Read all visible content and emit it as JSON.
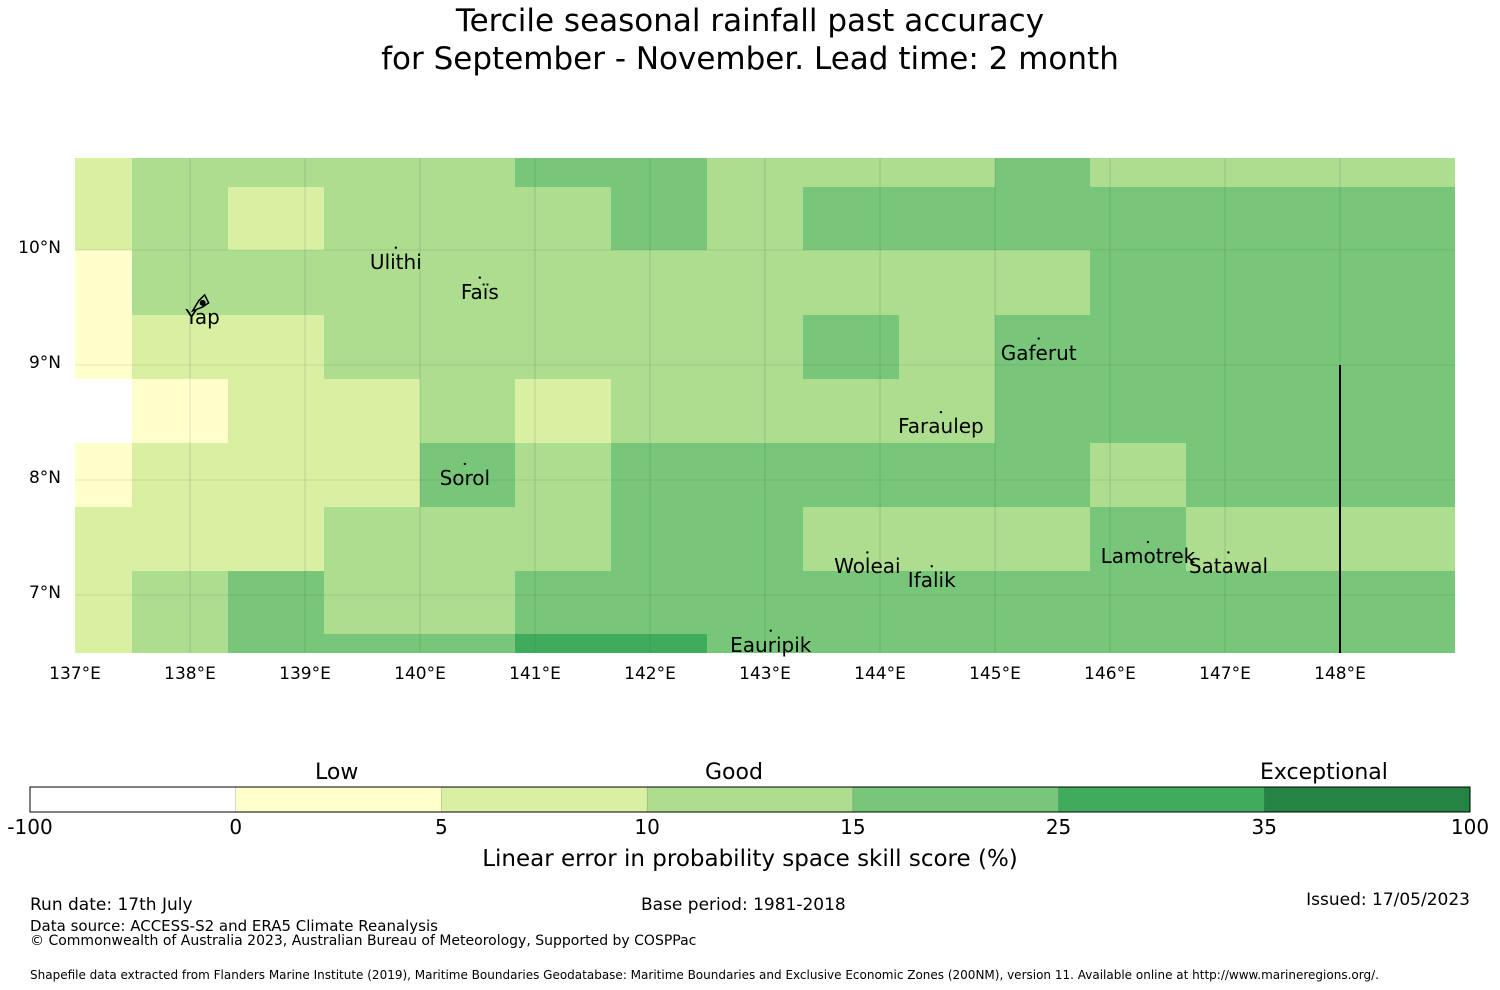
{
  "title": {
    "line1": "Tercile seasonal rainfall past accuracy",
    "line2": "for September - November. Lead time: 2 month"
  },
  "map": {
    "lon_range": [
      137.0,
      149.0
    ],
    "lat_range": [
      6.5,
      10.8
    ],
    "x_ticks": [
      "137°E",
      "138°E",
      "139°E",
      "140°E",
      "141°E",
      "142°E",
      "143°E",
      "144°E",
      "145°E",
      "146°E",
      "147°E",
      "148°E"
    ],
    "y_ticks": [
      "10°N",
      "9°N",
      "8°N",
      "7°N"
    ],
    "colors": {
      "c0": "#ffffff",
      "c1": "#ffffcc",
      "c2": "#d9f0a3",
      "c3": "#addd8e",
      "c4": "#78c679",
      "c5": "#41ab5d",
      "c6": "#238443",
      "grid": "#555555",
      "coast": "#000000"
    },
    "cells": [
      "2333344333433",
      "2323334344444",
      "1333333333344",
      "1223333343444",
      "0122323333444",
      "1222434444434",
      "2223334433343",
      "2343344444444",
      "2344455444444"
    ],
    "islands": [
      {
        "name": "Yap",
        "lon": 138.11,
        "lat": 9.54
      },
      {
        "name": "Ulithi",
        "lon": 139.79,
        "lat": 10.02
      },
      {
        "name": "Faïs",
        "lon": 140.52,
        "lat": 9.76
      },
      {
        "name": "Gaferut",
        "lon": 145.38,
        "lat": 9.23
      },
      {
        "name": "Faraulep",
        "lon": 144.53,
        "lat": 8.59
      },
      {
        "name": "Sorol",
        "lon": 140.39,
        "lat": 8.14
      },
      {
        "name": "Woleai",
        "lon": 143.89,
        "lat": 7.37
      },
      {
        "name": "Ifalik",
        "lon": 144.45,
        "lat": 7.25
      },
      {
        "name": "Lamotrek",
        "lon": 146.33,
        "lat": 7.46
      },
      {
        "name": "Satawal",
        "lon": 147.03,
        "lat": 7.37
      },
      {
        "name": "Eauripik",
        "lon": 143.05,
        "lat": 6.69
      }
    ],
    "boundary_lon": 148.0
  },
  "colorbar": {
    "categories": [
      "Low",
      "Good",
      "Exceptional"
    ],
    "ticks": [
      "-100",
      "0",
      "5",
      "10",
      "15",
      "25",
      "35",
      "100"
    ],
    "label": "Linear error in probability space skill score (%)"
  },
  "footer": {
    "run_date": "Run date: 17th July",
    "base_period": "Base period: 1981-2018",
    "issued": "Issued: 17/05/2023",
    "data_source": "Data source: ACCESS-S2 and ERA5 Climate Reanalysis",
    "copyright": "© Commonwealth of Australia 2023, Australian Bureau of Meteorology, Supported by COSPPac",
    "shapefile": "Shapefile data extracted from Flanders Marine Institute (2019), Maritime Boundaries Geodatabase: Maritime Boundaries and Exclusive Economic Zones (200NM), version 11. Available online at http://www.marineregions.org/."
  }
}
